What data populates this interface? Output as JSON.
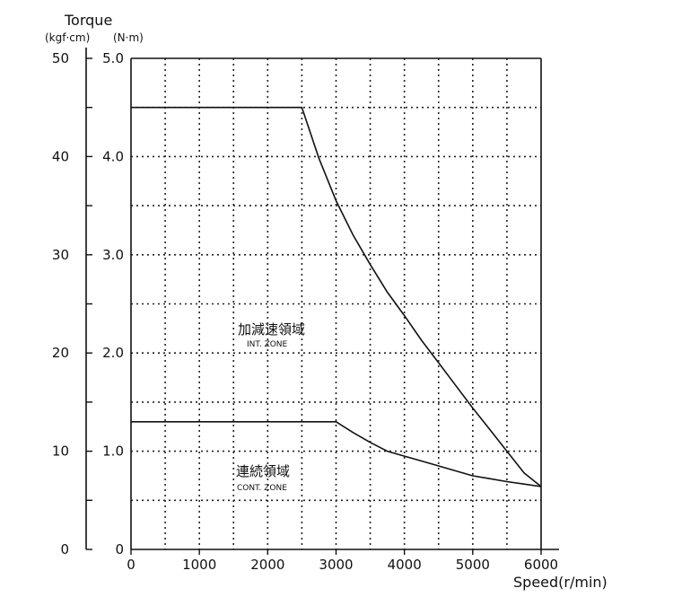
{
  "chart_data": {
    "type": "line",
    "title": "Torque",
    "units": {
      "kgf": "(kgf·cm)",
      "nm": "(N·m)"
    },
    "xlabel": "Speed(r/min)",
    "xlim": [
      0,
      6000
    ],
    "ylim": [
      0,
      5.0
    ],
    "y2lim": [
      0,
      50
    ],
    "x_ticks": [
      0,
      1000,
      2000,
      3000,
      4000,
      5000,
      6000
    ],
    "x_tick_labels": [
      "0",
      "1000",
      "2000",
      "3000",
      "4000",
      "5000",
      "6000"
    ],
    "y_ticks": [
      0,
      1.0,
      2.0,
      3.0,
      4.0,
      5.0
    ],
    "y_tick_labels": [
      "0",
      "1.0",
      "2.0",
      "3.0",
      "4.0",
      "5.0"
    ],
    "y2_ticks": [
      0,
      10,
      20,
      30,
      40,
      50
    ],
    "y2_tick_labels": [
      "0",
      "10",
      "20",
      "30",
      "40",
      "50"
    ],
    "grid": true,
    "series": [
      {
        "x": [
          0,
          2500,
          2750,
          3000,
          3250,
          3500,
          3750,
          4000,
          4250,
          4500,
          4750,
          5000,
          5250,
          5500,
          5750,
          6000
        ],
        "y": [
          4.5,
          4.5,
          3.98,
          3.55,
          3.2,
          2.9,
          2.62,
          2.38,
          2.13,
          1.9,
          1.67,
          1.44,
          1.22,
          1.0,
          0.78,
          0.64
        ]
      },
      {
        "x": [
          0,
          3000,
          3250,
          3500,
          3750,
          4000,
          4250,
          4500,
          4750,
          5000,
          5250,
          5500,
          5750,
          6000
        ],
        "y": [
          1.3,
          1.3,
          1.19,
          1.09,
          1.0,
          0.95,
          0.9,
          0.85,
          0.8,
          0.75,
          0.72,
          0.69,
          0.665,
          0.64
        ]
      }
    ],
    "annotations": [
      {
        "text": "加減速領域",
        "subtext": "INT. ZONE"
      },
      {
        "text": "連続領域",
        "subtext": "CONT. ZONE"
      }
    ]
  }
}
